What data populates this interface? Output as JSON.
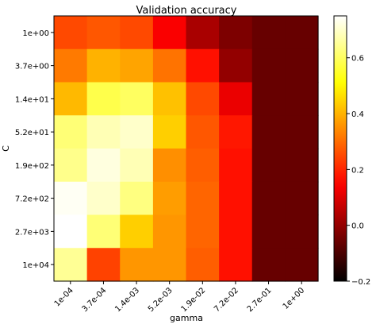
{
  "chart_data": {
    "type": "heatmap",
    "title": "Validation accuracy",
    "xlabel": "gamma",
    "ylabel": "C",
    "x_categories": [
      "1e-04",
      "3.7e-04",
      "1.4e-03",
      "5.2e-03",
      "1.9e-02",
      "7.2e-02",
      "2.7e-01",
      "1e+00"
    ],
    "y_categories": [
      "1e+00",
      "3.7e+00",
      "1.4e+01",
      "5.2e+01",
      "1.9e+02",
      "7.2e+02",
      "2.7e+03",
      "1e+04"
    ],
    "values": [
      [
        0.25,
        0.27,
        0.25,
        0.14,
        0.03,
        -0.03,
        -0.06,
        -0.06
      ],
      [
        0.32,
        0.4,
        0.38,
        0.31,
        0.17,
        0.0,
        -0.06,
        -0.06
      ],
      [
        0.41,
        0.58,
        0.6,
        0.42,
        0.25,
        0.12,
        -0.06,
        -0.06
      ],
      [
        0.62,
        0.68,
        0.7,
        0.44,
        0.27,
        0.18,
        -0.06,
        -0.06
      ],
      [
        0.64,
        0.72,
        0.68,
        0.35,
        0.28,
        0.17,
        -0.06,
        -0.06
      ],
      [
        0.74,
        0.7,
        0.63,
        0.37,
        0.29,
        0.17,
        -0.06,
        -0.06
      ],
      [
        0.8,
        0.62,
        0.44,
        0.36,
        0.29,
        0.17,
        -0.06,
        -0.06
      ],
      [
        0.65,
        0.24,
        0.36,
        0.36,
        0.28,
        0.17,
        -0.06,
        -0.06
      ]
    ],
    "colormap": "hot",
    "vmin": -0.2,
    "vmax": 0.75,
    "colorbar_ticks": [
      -0.2,
      0.0,
      0.2,
      0.4,
      0.6
    ],
    "colorbar_tick_labels": [
      "−0.2",
      "0.0",
      "0.2",
      "0.4",
      "0.6"
    ],
    "grid": false
  }
}
